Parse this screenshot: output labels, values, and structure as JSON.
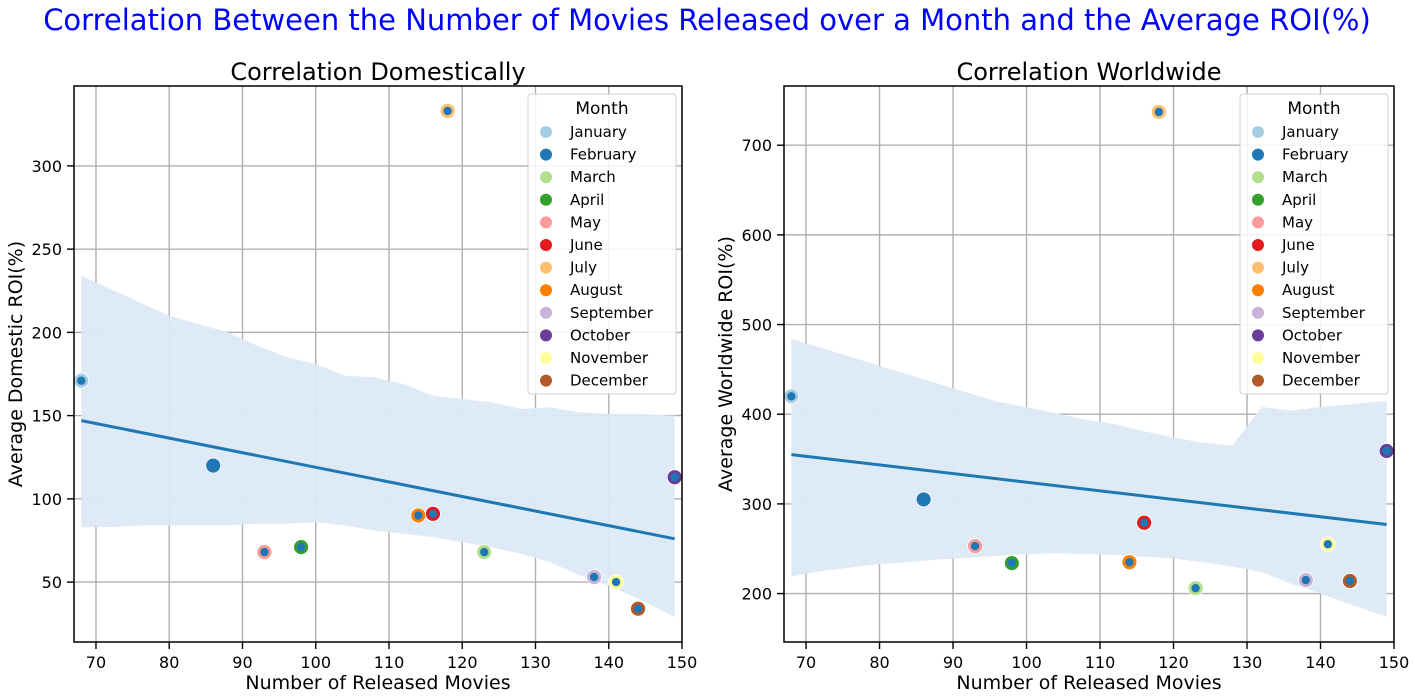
{
  "figure": {
    "suptitle": "Correlation Between the Number of Movies Released over a Month and the Average ROI(%)"
  },
  "chart_data": [
    {
      "type": "scatter",
      "title": "Correlation Domestically",
      "xlabel": "Number of Released Movies",
      "ylabel": "Average Domestic ROI(%)",
      "xlim": [
        67,
        150
      ],
      "ylim": [
        14,
        348
      ],
      "xticks": [
        70,
        80,
        90,
        100,
        110,
        120,
        130,
        140,
        150
      ],
      "yticks": [
        50,
        100,
        150,
        200,
        250,
        300
      ],
      "grid": true,
      "legend": {
        "title": "Month",
        "placement": "top-right",
        "entries": [
          "January",
          "February",
          "March",
          "April",
          "May",
          "June",
          "July",
          "August",
          "September",
          "October",
          "November",
          "December"
        ]
      },
      "points": [
        {
          "month": "January",
          "x": 68,
          "y": 171
        },
        {
          "month": "February",
          "x": 86,
          "y": 120
        },
        {
          "month": "March",
          "x": 123,
          "y": 68
        },
        {
          "month": "April",
          "x": 98,
          "y": 71
        },
        {
          "month": "May",
          "x": 93,
          "y": 68
        },
        {
          "month": "June",
          "x": 116,
          "y": 91
        },
        {
          "month": "July",
          "x": 118,
          "y": 333
        },
        {
          "month": "August",
          "x": 114,
          "y": 90
        },
        {
          "month": "September",
          "x": 138,
          "y": 53
        },
        {
          "month": "October",
          "x": 149,
          "y": 113
        },
        {
          "month": "November",
          "x": 141,
          "y": 50
        },
        {
          "month": "December",
          "x": 144,
          "y": 34
        }
      ],
      "regression": {
        "x": [
          68,
          149
        ],
        "y": [
          147,
          76
        ]
      },
      "confidence_band": {
        "x": [
          68,
          72,
          76,
          80,
          84,
          88,
          92,
          96,
          100,
          104,
          108,
          112,
          116,
          120,
          124,
          128,
          132,
          136,
          140,
          144,
          149
        ],
        "upper": [
          234,
          226,
          218,
          210,
          205,
          200,
          192,
          185,
          181,
          174,
          173,
          169,
          162,
          160,
          158,
          154,
          155,
          152,
          151,
          151,
          150
        ],
        "lower": [
          83,
          83,
          84,
          84,
          84,
          84,
          85,
          85,
          86,
          84,
          81,
          79,
          77,
          74,
          71,
          67,
          62,
          54,
          48,
          40,
          29
        ]
      }
    },
    {
      "type": "scatter",
      "title": "Correlation Worldwide",
      "xlabel": "Number of Released Movies",
      "ylabel": "Average Worldwide ROI(%)",
      "xlim": [
        67,
        150
      ],
      "ylim": [
        146,
        766
      ],
      "xticks": [
        70,
        80,
        90,
        100,
        110,
        120,
        130,
        140,
        150
      ],
      "yticks": [
        200,
        300,
        400,
        500,
        600,
        700
      ],
      "grid": true,
      "legend": {
        "title": "Month",
        "placement": "top-right",
        "entries": [
          "January",
          "February",
          "March",
          "April",
          "May",
          "June",
          "July",
          "August",
          "September",
          "October",
          "November",
          "December"
        ]
      },
      "points": [
        {
          "month": "January",
          "x": 68,
          "y": 420
        },
        {
          "month": "February",
          "x": 86,
          "y": 305
        },
        {
          "month": "March",
          "x": 123,
          "y": 206
        },
        {
          "month": "April",
          "x": 98,
          "y": 234
        },
        {
          "month": "May",
          "x": 93,
          "y": 253
        },
        {
          "month": "June",
          "x": 116,
          "y": 279
        },
        {
          "month": "July",
          "x": 118,
          "y": 737
        },
        {
          "month": "August",
          "x": 114,
          "y": 235
        },
        {
          "month": "September",
          "x": 138,
          "y": 215
        },
        {
          "month": "October",
          "x": 149,
          "y": 359
        },
        {
          "month": "November",
          "x": 141,
          "y": 255
        },
        {
          "month": "December",
          "x": 144,
          "y": 214
        }
      ],
      "regression": {
        "x": [
          68,
          149
        ],
        "y": [
          355,
          277
        ]
      },
      "confidence_band": {
        "x": [
          68,
          72,
          76,
          80,
          84,
          88,
          92,
          96,
          100,
          104,
          108,
          112,
          116,
          120,
          124,
          128,
          132,
          136,
          140,
          144,
          149
        ],
        "upper": [
          484,
          474,
          464,
          454,
          444,
          434,
          424,
          414,
          408,
          401,
          394,
          389,
          381,
          374,
          368,
          365,
          408,
          404,
          408,
          411,
          415
        ],
        "lower": [
          219,
          225,
          229,
          233,
          235,
          238,
          240,
          242,
          244,
          245,
          244,
          243,
          241,
          239,
          235,
          230,
          224,
          211,
          200,
          188,
          174
        ]
      }
    }
  ],
  "style": {
    "month_colors": {
      "January": "#a6cee3",
      "February": "#1f78b4",
      "March": "#b2df8a",
      "April": "#33a02c",
      "May": "#fb9a99",
      "June": "#e31a1c",
      "July": "#fdbf6f",
      "August": "#ff7f00",
      "September": "#cab2d6",
      "October": "#6a3d9a",
      "November": "#ffff99",
      "December": "#b15928"
    },
    "regression_color": "#1f77b4",
    "band_color": "#dce9f4",
    "grid_color": "#b0b0b0"
  }
}
